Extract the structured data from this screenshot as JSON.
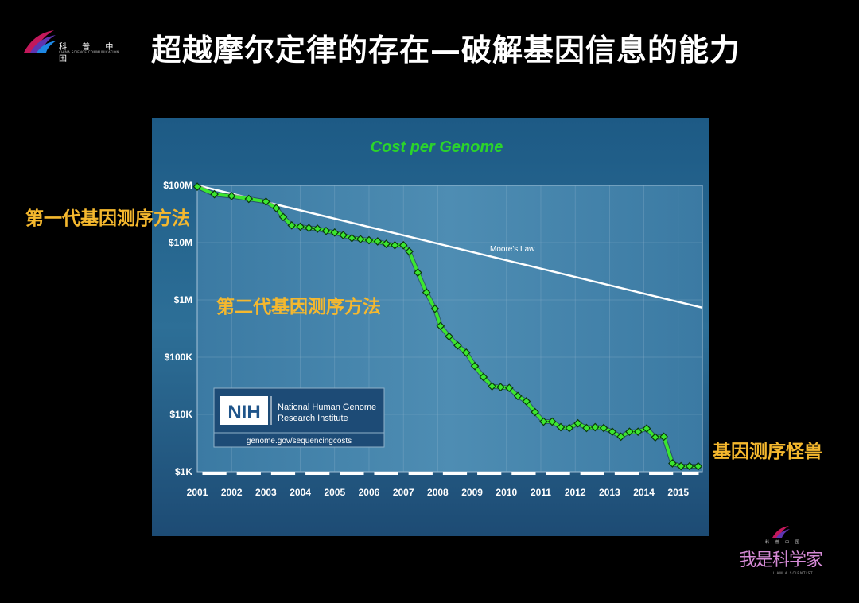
{
  "header": {
    "logo_cn": "科 普 中 国",
    "logo_en": "CHINA SCIENCE COMMUNICATION",
    "title": "超越摩尔定律的存在—破解基因信息的能力"
  },
  "annotations": {
    "first_gen": "第一代基因测序方法",
    "second_gen": "第二代基因测序方法",
    "monster": "基因测序怪兽"
  },
  "nih": {
    "abbr": "NIH",
    "line1": "National Human Genome",
    "line2": "Research Institute",
    "url": "genome.gov/sequencingcosts"
  },
  "footer_logo": {
    "small_cn": "科 普 中 国",
    "main": "我是科学家",
    "sub": "I AM A SCIENTIST"
  },
  "colors": {
    "accent_annotation": "#F5B82E",
    "series_line": "#3CE62F",
    "title_green": "#2BD42B",
    "moore_line": "#FFFFFF"
  },
  "chart_data": {
    "type": "line",
    "title": "Cost per Genome",
    "xlabel": "",
    "ylabel": "",
    "y_scale": "log",
    "ylim": [
      1000,
      100000000
    ],
    "xlim": [
      2001,
      2015.7
    ],
    "y_ticks": [
      {
        "value": 100000000,
        "label": "$100M"
      },
      {
        "value": 10000000,
        "label": "$10M"
      },
      {
        "value": 1000000,
        "label": "$1M"
      },
      {
        "value": 100000,
        "label": "$100K"
      },
      {
        "value": 10000,
        "label": "$10K"
      },
      {
        "value": 1000,
        "label": "$1K"
      }
    ],
    "x_ticks": [
      "2001",
      "2002",
      "2003",
      "2004",
      "2005",
      "2006",
      "2007",
      "2008",
      "2009",
      "2010",
      "2011",
      "2012",
      "2013",
      "2014",
      "2015"
    ],
    "grid": true,
    "series": [
      {
        "name": "Cost per Genome",
        "x": [
          2001.0,
          2001.5,
          2002.0,
          2002.5,
          2003.0,
          2003.3,
          2003.5,
          2003.75,
          2004.0,
          2004.25,
          2004.5,
          2004.75,
          2005.0,
          2005.25,
          2005.5,
          2005.75,
          2006.0,
          2006.25,
          2006.5,
          2006.75,
          2007.0,
          2007.17,
          2007.42,
          2007.67,
          2007.92,
          2008.08,
          2008.33,
          2008.58,
          2008.83,
          2009.08,
          2009.33,
          2009.58,
          2009.83,
          2010.08,
          2010.33,
          2010.58,
          2010.83,
          2011.08,
          2011.33,
          2011.58,
          2011.83,
          2012.08,
          2012.33,
          2012.58,
          2012.83,
          2013.08,
          2013.33,
          2013.58,
          2013.83,
          2014.08,
          2014.33,
          2014.58,
          2014.83,
          2015.08,
          2015.33,
          2015.58
        ],
        "y": [
          95000000,
          70000000,
          65000000,
          58000000,
          52000000,
          40000000,
          28000000,
          20000000,
          19000000,
          18000000,
          17500000,
          16000000,
          15000000,
          13500000,
          12000000,
          11500000,
          11000000,
          10500000,
          9500000,
          9000000,
          9000000,
          7000000,
          3000000,
          1350000,
          700000,
          350000,
          230000,
          160000,
          120000,
          70000,
          45000,
          31000,
          30000,
          29000,
          21000,
          17000,
          11000,
          7500,
          7500,
          6000,
          5800,
          7000,
          5800,
          6000,
          5800,
          5000,
          4100,
          5000,
          5000,
          5700,
          4000,
          4100,
          1400,
          1250,
          1250,
          1245
        ],
        "color": "#3CE62F"
      },
      {
        "name": "Moore's Law",
        "x": [
          2001,
          2015.7
        ],
        "y": [
          100000000,
          730000
        ],
        "color": "#FFFFFF"
      }
    ]
  }
}
